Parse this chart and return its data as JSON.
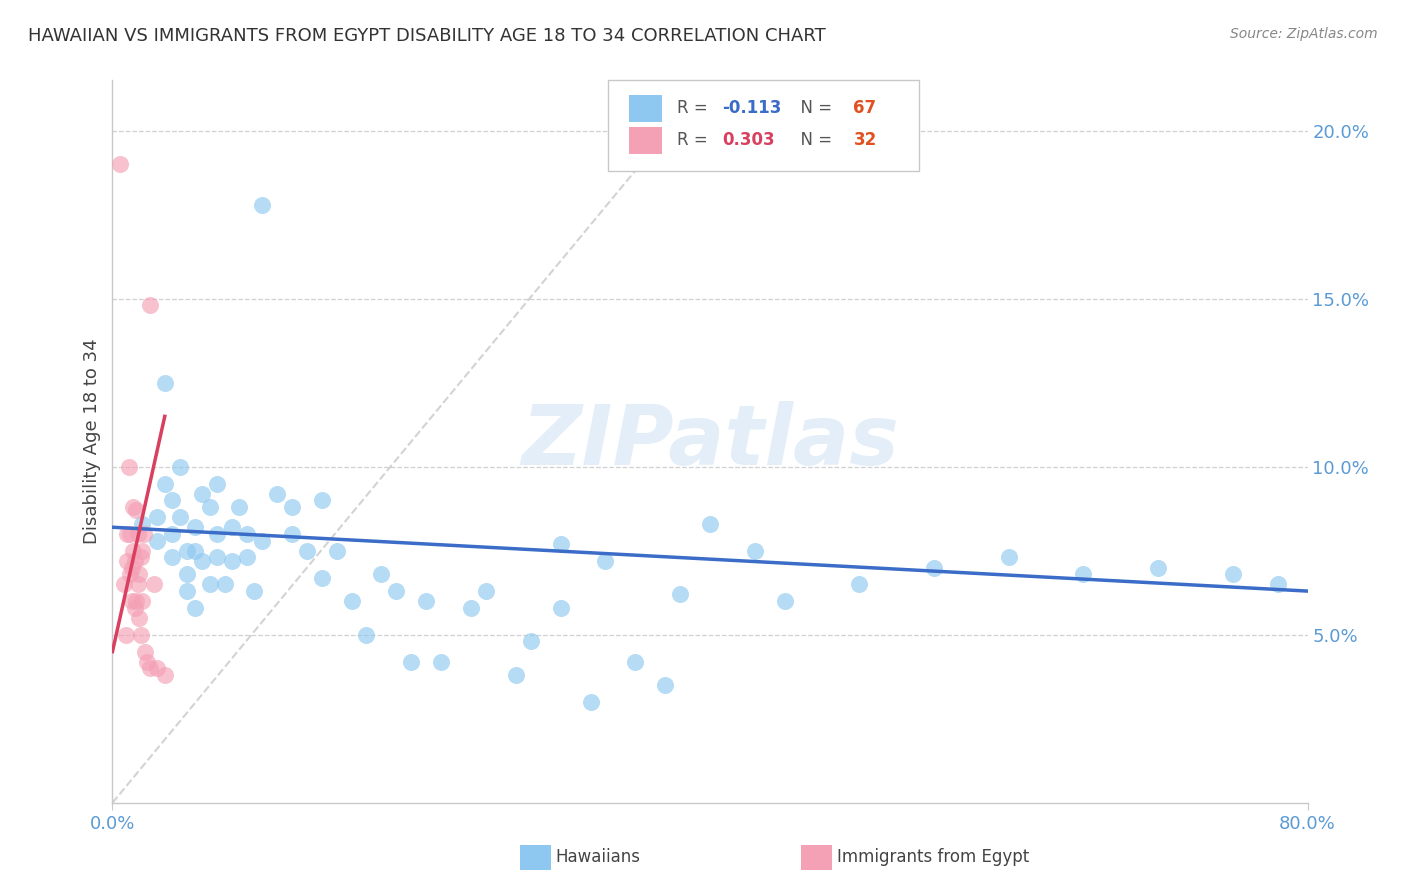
{
  "title": "HAWAIIAN VS IMMIGRANTS FROM EGYPT DISABILITY AGE 18 TO 34 CORRELATION CHART",
  "source": "Source: ZipAtlas.com",
  "ylabel": "Disability Age 18 to 34",
  "right_ytick_labels": [
    "5.0%",
    "10.0%",
    "15.0%",
    "20.0%"
  ],
  "right_ytick_values": [
    0.05,
    0.1,
    0.15,
    0.2
  ],
  "xlim": [
    0.0,
    0.8
  ],
  "ylim": [
    0.0,
    0.215
  ],
  "hawaiian_R": -0.113,
  "hawaiian_N": 67,
  "egypt_R": 0.303,
  "egypt_N": 32,
  "hawaiian_color": "#8EC8F0",
  "egypt_color": "#F4A0B5",
  "trend_hawaiian_color": "#3B6CC7",
  "trend_egypt_color": "#D94060",
  "trend_ref_color": "#C8C8C8",
  "watermark": "ZIPatlas",
  "hawaiian_x": [
    0.02,
    0.03,
    0.03,
    0.035,
    0.035,
    0.04,
    0.04,
    0.04,
    0.045,
    0.045,
    0.05,
    0.05,
    0.05,
    0.055,
    0.055,
    0.055,
    0.06,
    0.06,
    0.065,
    0.065,
    0.07,
    0.07,
    0.07,
    0.075,
    0.08,
    0.08,
    0.085,
    0.09,
    0.09,
    0.095,
    0.1,
    0.1,
    0.11,
    0.12,
    0.12,
    0.13,
    0.14,
    0.14,
    0.15,
    0.16,
    0.17,
    0.18,
    0.19,
    0.2,
    0.21,
    0.22,
    0.24,
    0.25,
    0.27,
    0.28,
    0.3,
    0.32,
    0.35,
    0.37,
    0.4,
    0.43,
    0.5,
    0.55,
    0.6,
    0.65,
    0.7,
    0.75,
    0.78,
    0.3,
    0.33,
    0.38,
    0.45
  ],
  "hawaiian_y": [
    0.083,
    0.085,
    0.078,
    0.095,
    0.125,
    0.09,
    0.08,
    0.073,
    0.1,
    0.085,
    0.075,
    0.068,
    0.063,
    0.082,
    0.075,
    0.058,
    0.092,
    0.072,
    0.088,
    0.065,
    0.095,
    0.08,
    0.073,
    0.065,
    0.082,
    0.072,
    0.088,
    0.08,
    0.073,
    0.063,
    0.178,
    0.078,
    0.092,
    0.088,
    0.08,
    0.075,
    0.09,
    0.067,
    0.075,
    0.06,
    0.05,
    0.068,
    0.063,
    0.042,
    0.06,
    0.042,
    0.058,
    0.063,
    0.038,
    0.048,
    0.058,
    0.03,
    0.042,
    0.035,
    0.083,
    0.075,
    0.065,
    0.07,
    0.073,
    0.068,
    0.07,
    0.068,
    0.065,
    0.077,
    0.072,
    0.062,
    0.06
  ],
  "egypt_x": [
    0.005,
    0.008,
    0.009,
    0.01,
    0.01,
    0.011,
    0.012,
    0.012,
    0.013,
    0.013,
    0.014,
    0.014,
    0.015,
    0.015,
    0.016,
    0.016,
    0.017,
    0.017,
    0.018,
    0.018,
    0.019,
    0.019,
    0.02,
    0.02,
    0.021,
    0.022,
    0.023,
    0.025,
    0.025,
    0.028,
    0.03,
    0.035
  ],
  "egypt_y": [
    0.19,
    0.065,
    0.05,
    0.08,
    0.072,
    0.1,
    0.08,
    0.068,
    0.07,
    0.06,
    0.088,
    0.075,
    0.072,
    0.058,
    0.087,
    0.06,
    0.08,
    0.065,
    0.068,
    0.055,
    0.073,
    0.05,
    0.075,
    0.06,
    0.08,
    0.045,
    0.042,
    0.04,
    0.148,
    0.065,
    0.04,
    0.038
  ],
  "haw_trend_x0": 0.0,
  "haw_trend_y0": 0.082,
  "haw_trend_x1": 0.8,
  "haw_trend_y1": 0.063,
  "egypt_trend_x0": 0.0,
  "egypt_trend_y0": 0.045,
  "egypt_trend_x1": 0.035,
  "egypt_trend_y1": 0.115,
  "ref_line_x0": 0.0,
  "ref_line_y0": 0.0,
  "ref_line_x1": 0.4,
  "ref_line_y1": 0.215
}
